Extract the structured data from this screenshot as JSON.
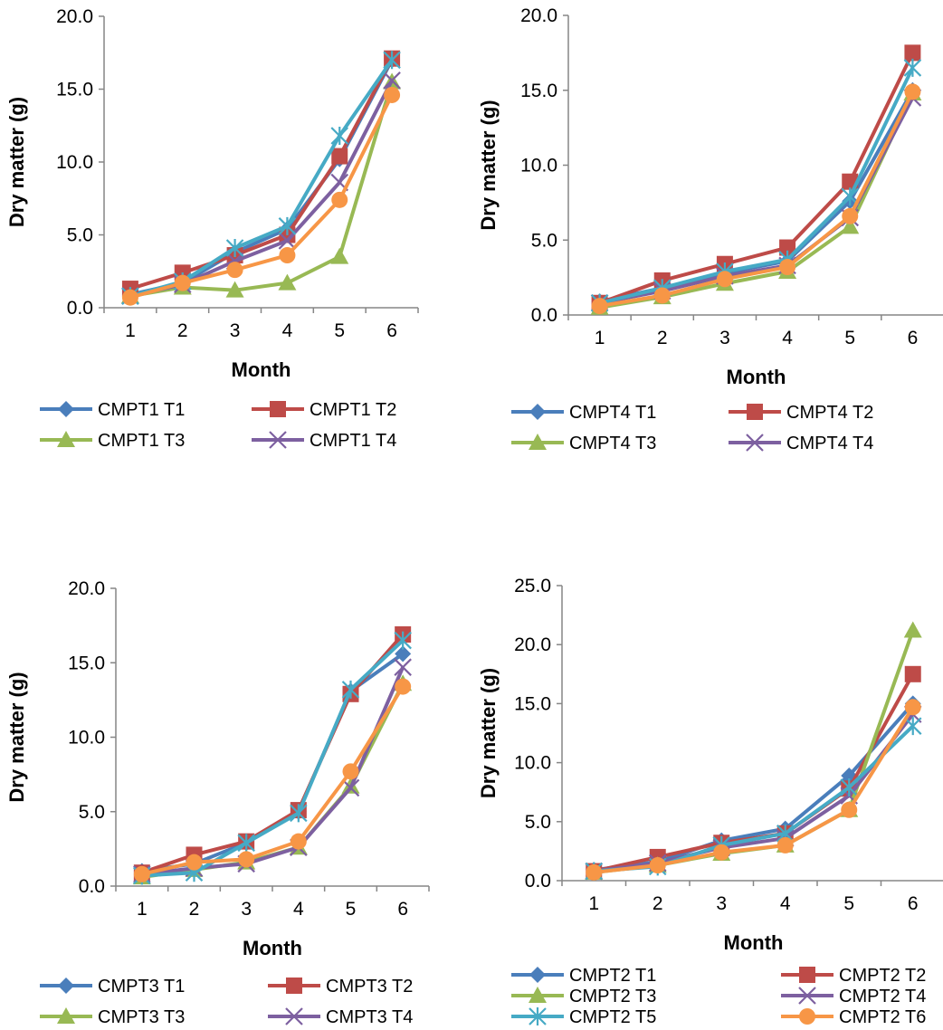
{
  "colors": {
    "T1": "#4A7EBB",
    "T2": "#BE4B48",
    "T3": "#98B954",
    "T4": "#7D60A0",
    "T5": "#46AAC5",
    "T6": "#F79646",
    "axis": "#868686"
  },
  "chart_data": [
    {
      "type": "line",
      "xlabel": "Month",
      "ylabel": "Dry matter (g)",
      "ylim": [
        0,
        20
      ],
      "ystep": 5,
      "x": [
        1,
        2,
        3,
        4,
        5,
        6
      ],
      "x_tick_labels": [
        "1",
        "2",
        "3",
        "4",
        "5",
        "6"
      ],
      "y_tick_labels": [
        "0.0",
        "5.0",
        "10.0",
        "15.0",
        "20.0"
      ],
      "legend": "bottom",
      "grid": false,
      "series": [
        {
          "name": "CMPT1 T1",
          "marker": "diamond",
          "color": "#4A7EBB",
          "values": [
            0.9,
            1.7,
            3.8,
            5.4,
            10.2,
            17.0
          ]
        },
        {
          "name": "CMPT1 T2",
          "marker": "square",
          "color": "#BE4B48",
          "values": [
            1.3,
            2.4,
            3.6,
            5.0,
            10.4,
            17.1
          ]
        },
        {
          "name": "CMPT1 T3",
          "marker": "triangle",
          "color": "#98B954",
          "values": [
            0.8,
            1.4,
            1.2,
            1.7,
            3.5,
            15.5
          ]
        },
        {
          "name": "CMPT1 T4",
          "marker": "x",
          "color": "#7D60A0",
          "values": [
            0.8,
            1.6,
            3.2,
            4.6,
            8.6,
            15.6
          ]
        },
        {
          "name": "",
          "marker": "star",
          "color": "#46AAC5",
          "values": [
            0.8,
            1.8,
            4.1,
            5.6,
            11.8,
            17.0
          ]
        },
        {
          "name": "",
          "marker": "circle",
          "color": "#F79646",
          "values": [
            0.7,
            1.7,
            2.6,
            3.6,
            7.4,
            14.6
          ]
        }
      ]
    },
    {
      "type": "line",
      "xlabel": "Month",
      "ylabel": "Dry matter (g)",
      "ylim": [
        0,
        20
      ],
      "ystep": 5,
      "x": [
        1,
        2,
        3,
        4,
        5,
        6
      ],
      "x_tick_labels": [
        "1",
        "2",
        "3",
        "4",
        "5",
        "6"
      ],
      "y_tick_labels": [
        "0.0",
        "5.0",
        "10.0",
        "15.0",
        "20.0"
      ],
      "legend": "bottom",
      "grid": false,
      "series": [
        {
          "name": "CMPT4 T1",
          "marker": "diamond",
          "color": "#4A7EBB",
          "values": [
            0.9,
            1.8,
            2.8,
            3.6,
            7.6,
            15.0
          ]
        },
        {
          "name": "CMPT4 T2",
          "marker": "square",
          "color": "#BE4B48",
          "values": [
            0.8,
            2.3,
            3.4,
            4.5,
            8.9,
            17.5
          ]
        },
        {
          "name": "CMPT4 T3",
          "marker": "triangle",
          "color": "#98B954",
          "values": [
            0.5,
            1.2,
            2.1,
            2.9,
            5.9,
            14.8
          ]
        },
        {
          "name": "CMPT4 T4",
          "marker": "x",
          "color": "#7D60A0",
          "values": [
            0.8,
            1.6,
            2.6,
            3.3,
            6.5,
            14.5
          ]
        },
        {
          "name": "",
          "marker": "star",
          "color": "#46AAC5",
          "values": [
            0.8,
            1.8,
            2.9,
            3.7,
            7.9,
            16.5
          ]
        },
        {
          "name": "",
          "marker": "circle",
          "color": "#F79646",
          "values": [
            0.6,
            1.3,
            2.4,
            3.2,
            6.6,
            14.9
          ]
        }
      ]
    },
    {
      "type": "line",
      "xlabel": "Month",
      "ylabel": "Dry matter (g)",
      "ylim": [
        0,
        20
      ],
      "ystep": 5,
      "x": [
        1,
        2,
        3,
        4,
        5,
        6
      ],
      "x_tick_labels": [
        "1",
        "2",
        "3",
        "4",
        "5",
        "6"
      ],
      "y_tick_labels": [
        "0.0",
        "5.0",
        "10.0",
        "15.0",
        "20.0"
      ],
      "legend": "bottom",
      "grid": false,
      "series": [
        {
          "name": "CMPT3 T1",
          "marker": "diamond",
          "color": "#4A7EBB",
          "values": [
            1.0,
            1.5,
            2.9,
            5.0,
            13.1,
            15.6
          ]
        },
        {
          "name": "CMPT3 T2",
          "marker": "square",
          "color": "#BE4B48",
          "values": [
            0.9,
            2.1,
            3.0,
            5.1,
            12.9,
            16.9
          ]
        },
        {
          "name": "CMPT3 T3",
          "marker": "triangle",
          "color": "#98B954",
          "values": [
            0.6,
            1.1,
            1.6,
            2.6,
            6.7,
            13.6
          ]
        },
        {
          "name": "CMPT3 T4",
          "marker": "x",
          "color": "#7D60A0",
          "values": [
            0.8,
            1.2,
            1.5,
            2.6,
            6.6,
            14.7
          ]
        },
        {
          "name": "",
          "marker": "star",
          "color": "#46AAC5",
          "values": [
            0.7,
            0.9,
            2.9,
            4.9,
            13.2,
            16.5
          ]
        },
        {
          "name": "",
          "marker": "circle",
          "color": "#F79646",
          "values": [
            0.8,
            1.6,
            1.8,
            3.0,
            7.7,
            13.4
          ]
        }
      ]
    },
    {
      "type": "line",
      "xlabel": "Month",
      "ylabel": "Dry matter (g)",
      "ylim": [
        0,
        25
      ],
      "ystep": 5,
      "x": [
        1,
        2,
        3,
        4,
        5,
        6
      ],
      "x_tick_labels": [
        "1",
        "2",
        "3",
        "4",
        "5",
        "6"
      ],
      "y_tick_labels": [
        "0.0",
        "5.0",
        "10.0",
        "15.0",
        "20.0",
        "25.0"
      ],
      "legend": "bottom",
      "grid": false,
      "series": [
        {
          "name": "CMPT2 T1",
          "marker": "diamond",
          "color": "#4A7EBB",
          "values": [
            0.9,
            1.6,
            3.4,
            4.4,
            8.9,
            15.0
          ]
        },
        {
          "name": "CMPT2 T2",
          "marker": "square",
          "color": "#BE4B48",
          "values": [
            0.8,
            2.0,
            3.2,
            4.0,
            7.8,
            17.5
          ]
        },
        {
          "name": "CMPT2 T3",
          "marker": "triangle",
          "color": "#98B954",
          "values": [
            0.7,
            1.3,
            2.3,
            3.0,
            6.0,
            21.2
          ]
        },
        {
          "name": "CMPT2 T4",
          "marker": "x",
          "color": "#7D60A0",
          "values": [
            0.8,
            1.5,
            2.8,
            3.6,
            7.2,
            14.1
          ]
        },
        {
          "name": "CMPT2 T5",
          "marker": "star",
          "color": "#46AAC5",
          "values": [
            0.8,
            1.2,
            3.0,
            4.0,
            7.9,
            13.1
          ]
        },
        {
          "name": "CMPT2 T6",
          "marker": "circle",
          "color": "#F79646",
          "values": [
            0.7,
            1.3,
            2.4,
            3.0,
            6.0,
            14.7
          ]
        }
      ]
    }
  ]
}
